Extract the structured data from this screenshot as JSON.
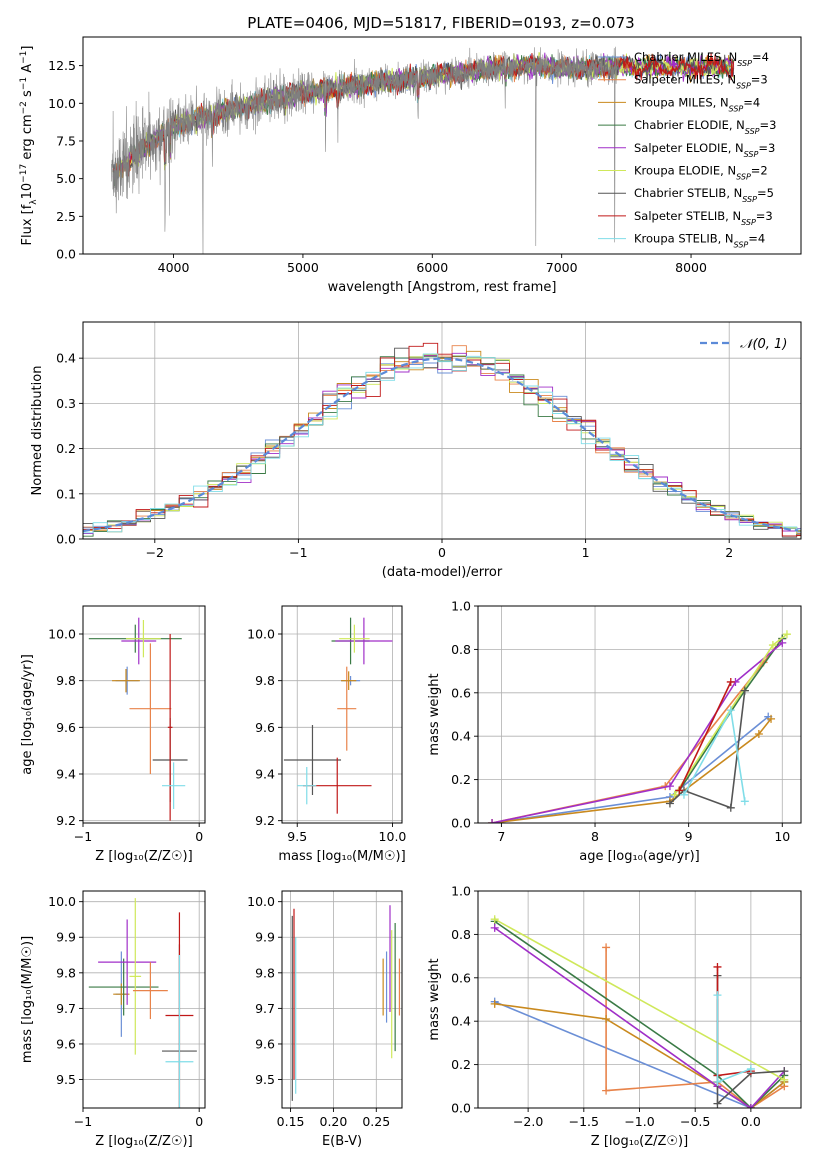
{
  "figure": {
    "title": "PLATE=0406, MJD=51817, FIBERID=0193, z=0.073"
  },
  "series": [
    {
      "name": "Chabrier MILES, N_SSP=4",
      "label_main": "Chabrier MILES, N",
      "label_sub": "SSP",
      "label_tail": "=4",
      "color": "#6b8fd6"
    },
    {
      "name": "Salpeter MILES, N_SSP=3",
      "label_main": "Salpeter MILES, N",
      "label_sub": "SSP",
      "label_tail": "=3",
      "color": "#e8834a"
    },
    {
      "name": "Kroupa MILES, N_SSP=4",
      "label_main": "Kroupa MILES, N",
      "label_sub": "SSP",
      "label_tail": "=4",
      "color": "#c9891e"
    },
    {
      "name": "Chabrier ELODIE, N_SSP=3",
      "label_main": "Chabrier ELODIE, N",
      "label_sub": "SSP",
      "label_tail": "=3",
      "color": "#3a7a45"
    },
    {
      "name": "Salpeter ELODIE, N_SSP=3",
      "label_main": "Salpeter ELODIE, N",
      "label_sub": "SSP",
      "label_tail": "=3",
      "color": "#a02fc8"
    },
    {
      "name": "Kroupa ELODIE, N_SSP=2",
      "label_main": "Kroupa ELODIE, N",
      "label_sub": "SSP",
      "label_tail": "=2",
      "color": "#cfe85a"
    },
    {
      "name": "Chabrier STELIB, N_SSP=5",
      "label_main": "Chabrier STELIB, N",
      "label_sub": "SSP",
      "label_tail": "=5",
      "color": "#555555"
    },
    {
      "name": "Salpeter STELIB, N_SSP=3",
      "label_main": "Salpeter STELIB, N",
      "label_sub": "SSP",
      "label_tail": "=3",
      "color": "#c01818"
    },
    {
      "name": "Kroupa STELIB, N_SSP=4",
      "label_main": "Kroupa STELIB, N",
      "label_sub": "SSP",
      "label_tail": "=4",
      "color": "#80dde8"
    }
  ],
  "chart_data": [
    {
      "id": "spectrum",
      "type": "line",
      "xlabel": "wavelength [Angstrom, rest frame]",
      "ylabel_main": "Flux [f",
      "ylabel_sub": "λ",
      "ylabel_mid": "10",
      "ylabel_sup1": "−17",
      "ylabel_tail": " erg cm",
      "ylabel_sup2": "−2",
      "ylabel_tail2": " s",
      "ylabel_sup3": "−1",
      "ylabel_tail3": " A",
      "ylabel_sup4": "−1",
      "ylabel_end": "]",
      "xlim": [
        3300,
        8850
      ],
      "ylim": [
        0,
        14.4
      ],
      "xticks": [
        4000,
        5000,
        6000,
        7000,
        8000
      ],
      "yticks": [
        0.0,
        2.5,
        5.0,
        7.5,
        10.0,
        12.5
      ],
      "xtick_labels": [
        "4000",
        "5000",
        "6000",
        "7000",
        "8000"
      ],
      "ytick_labels": [
        "0.0",
        "2.5",
        "5.0",
        "7.5",
        "10.0",
        "12.5"
      ],
      "data_range": [
        3520,
        7440
      ],
      "continuum_x": [
        3520,
        3700,
        3900,
        4000,
        4200,
        4500,
        4800,
        5000,
        5500,
        6000,
        6500,
        6800,
        7000,
        7440
      ],
      "continuum_y": [
        5.2,
        6.5,
        7.9,
        8.5,
        9.0,
        9.7,
        10.4,
        10.7,
        11.3,
        11.8,
        12.3,
        12.5,
        12.3,
        12.4
      ],
      "absorption_lines": [
        {
          "x": 3934,
          "depth": 7.5
        },
        {
          "x": 3968,
          "depth": 5.5
        },
        {
          "x": 4227,
          "depth": 9.5
        },
        {
          "x": 4300,
          "depth": 3.5
        },
        {
          "x": 4861,
          "depth": 2.5
        },
        {
          "x": 5175,
          "depth": 4.5
        },
        {
          "x": 5270,
          "depth": 3.0
        },
        {
          "x": 5890,
          "depth": 4.0
        },
        {
          "x": 6563,
          "depth": 2.5
        },
        {
          "x": 6800,
          "depth": 12.5
        },
        {
          "x": 7410,
          "depth": 12.4
        }
      ],
      "model_extent": [
        3530,
        8330
      ]
    },
    {
      "id": "residuals",
      "type": "step",
      "xlabel": "(data-model)/error",
      "ylabel": "Normed distribution",
      "xlim": [
        -2.5,
        2.5
      ],
      "ylim": [
        0,
        0.48
      ],
      "xticks": [
        -2,
        -1,
        0,
        1,
        2
      ],
      "yticks": [
        0.0,
        0.1,
        0.2,
        0.3,
        0.4
      ],
      "xtick_labels": [
        "−2",
        "−1",
        "0",
        "1",
        "2"
      ],
      "ytick_labels": [
        "0.0",
        "0.1",
        "0.2",
        "0.3",
        "0.4"
      ],
      "bin_width": 0.1,
      "reference": {
        "label": "𝒩(0, 1)",
        "mean": 0,
        "sigma": 1,
        "color": "#5b8ad8"
      }
    },
    {
      "id": "z_age",
      "type": "errorbar",
      "xlabel": "Z [log₁₀(Z/Z☉)]",
      "ylabel": "age  [log₁₀(age/yr)]",
      "xlim": [
        -1.0,
        0.05
      ],
      "ylim": [
        9.19,
        10.12
      ],
      "xticks": [
        -1,
        0
      ],
      "yticks": [
        9.2,
        9.4,
        9.6,
        9.8,
        10.0
      ],
      "xtick_labels": [
        "−1",
        "0"
      ],
      "ytick_labels": [
        "9.2",
        "9.4",
        "9.6",
        "9.8",
        "10.0"
      ],
      "points": [
        {
          "s": 0,
          "x": -0.62,
          "y": 9.8,
          "xerr": 0.1,
          "yerr": 0.06
        },
        {
          "s": 2,
          "x": -0.63,
          "y": 9.8,
          "xerr": 0.12,
          "yerr": 0.05
        },
        {
          "s": 3,
          "x": -0.55,
          "y": 9.98,
          "xerr": 0.4,
          "yerr": 0.06
        },
        {
          "s": 4,
          "x": -0.52,
          "y": 9.97,
          "xerr": 0.15,
          "yerr": 0.1
        },
        {
          "s": 5,
          "x": -0.48,
          "y": 9.98,
          "xerr": 0.15,
          "yerr": 0.08
        },
        {
          "s": 1,
          "x": -0.42,
          "y": 9.68,
          "xerr": 0.18,
          "yerr": 0.28
        },
        {
          "s": 6,
          "x": -0.25,
          "y": 9.46,
          "xerr": 0.15,
          "yerr": 0.18
        },
        {
          "s": 7,
          "x": -0.25,
          "y": 9.6,
          "xerr": 0.02,
          "yerr": 0.4
        },
        {
          "s": 8,
          "x": -0.22,
          "y": 9.35,
          "xerr": 0.1,
          "yerr": 0.1
        }
      ]
    },
    {
      "id": "mass_age",
      "type": "errorbar",
      "xlabel": "mass [log₁₀(M/M☉)]",
      "ylabel": "",
      "xlim": [
        9.42,
        10.05
      ],
      "ylim": [
        9.19,
        10.12
      ],
      "xticks": [
        9.5,
        10.0
      ],
      "yticks": [
        9.2,
        9.4,
        9.6,
        9.8,
        10.0
      ],
      "xtick_labels": [
        "9.5",
        "10.0"
      ],
      "ytick_labels": [
        "9.2",
        "9.4",
        "9.6",
        "9.8",
        "10.0"
      ],
      "points": [
        {
          "s": 0,
          "x": 9.78,
          "y": 9.8,
          "xerr": 0.05,
          "yerr": 0.02
        },
        {
          "s": 3,
          "x": 9.78,
          "y": 9.97,
          "xerr": 0.1,
          "yerr": 0.1
        },
        {
          "s": 4,
          "x": 9.85,
          "y": 9.97,
          "xerr": 0.15,
          "yerr": 0.1
        },
        {
          "s": 5,
          "x": 9.8,
          "y": 9.98,
          "xerr": 0.08,
          "yerr": 0.06
        },
        {
          "s": 1,
          "x": 9.76,
          "y": 9.68,
          "xerr": 0.05,
          "yerr": 0.18
        },
        {
          "s": 6,
          "x": 9.58,
          "y": 9.46,
          "xerr": 0.15,
          "yerr": 0.15
        },
        {
          "s": 7,
          "x": 9.71,
          "y": 9.35,
          "xerr": 0.18,
          "yerr": 0.12
        },
        {
          "s": 8,
          "x": 9.55,
          "y": 9.35,
          "xerr": 0.05,
          "yerr": 0.08
        },
        {
          "s": 2,
          "x": 9.77,
          "y": 9.8,
          "xerr": 0.04,
          "yerr": 0.04
        }
      ]
    },
    {
      "id": "age_weight",
      "type": "line",
      "xlabel": "age  [log₁₀(age/yr)]",
      "ylabel": "mass weight",
      "xlim": [
        6.75,
        10.2
      ],
      "ylim": [
        0,
        1.0
      ],
      "xticks": [
        7,
        8,
        9,
        10
      ],
      "yticks": [
        0.0,
        0.2,
        0.4,
        0.6,
        0.8,
        1.0
      ],
      "xtick_labels": [
        "7",
        "8",
        "9",
        "10"
      ],
      "ytick_labels": [
        "0.0",
        "0.2",
        "0.4",
        "0.6",
        "0.8",
        "1.0"
      ],
      "lines": [
        {
          "s": 0,
          "x": [
            6.9,
            8.8,
            9.85
          ],
          "y": [
            0.0,
            0.12,
            0.49
          ]
        },
        {
          "s": 1,
          "x": [
            6.9,
            8.75,
            9.8,
            10.0
          ],
          "y": [
            0.0,
            0.17,
            0.74,
            0.85
          ]
        },
        {
          "s": 2,
          "x": [
            6.9,
            8.8,
            9.75,
            9.88
          ],
          "y": [
            0.0,
            0.1,
            0.41,
            0.48
          ]
        },
        {
          "s": 3,
          "x": [
            8.9,
            9.6,
            10.0
          ],
          "y": [
            0.15,
            0.61,
            0.85
          ]
        },
        {
          "s": 4,
          "x": [
            6.9,
            8.8,
            9.5,
            10.0
          ],
          "y": [
            0.0,
            0.17,
            0.65,
            0.83
          ]
        },
        {
          "s": 5,
          "x": [
            8.85,
            9.9,
            10.05
          ],
          "y": [
            0.13,
            0.82,
            0.87
          ]
        },
        {
          "s": 6,
          "x": [
            8.8,
            8.95,
            9.45,
            9.6
          ],
          "y": [
            0.09,
            0.15,
            0.07,
            0.61
          ]
        },
        {
          "s": 7,
          "x": [
            8.9,
            9.45
          ],
          "y": [
            0.15,
            0.65
          ]
        },
        {
          "s": 8,
          "x": [
            8.95,
            9.45,
            9.6
          ],
          "y": [
            0.13,
            0.52,
            0.1
          ]
        }
      ]
    },
    {
      "id": "z_mass",
      "type": "errorbar",
      "xlabel": "Z [log₁₀(Z/Z☉)]",
      "ylabel": "mass [log₁₀(M/M☉)]",
      "xlim": [
        -1.0,
        0.05
      ],
      "ylim": [
        9.42,
        10.03
      ],
      "xticks": [
        -1,
        0
      ],
      "yticks": [
        9.5,
        9.6,
        9.7,
        9.8,
        9.9,
        10.0
      ],
      "xtick_labels": [
        "−1",
        "0"
      ],
      "ytick_labels": [
        "9.5",
        "9.6",
        "9.7",
        "9.8",
        "9.9",
        "10.0"
      ],
      "points": [
        {
          "s": 0,
          "x": -0.67,
          "y": 9.74,
          "xerr": 0.05,
          "yerr": 0.12
        },
        {
          "s": 2,
          "x": -0.67,
          "y": 9.74,
          "xerr": 0.07,
          "yerr": 0.03
        },
        {
          "s": 3,
          "x": -0.65,
          "y": 9.76,
          "xerr": 0.3,
          "yerr": 0.08
        },
        {
          "s": 4,
          "x": -0.62,
          "y": 9.83,
          "xerr": 0.25,
          "yerr": 0.12
        },
        {
          "s": 5,
          "x": -0.55,
          "y": 9.79,
          "xerr": 0.05,
          "yerr": 0.22
        },
        {
          "s": 1,
          "x": -0.42,
          "y": 9.75,
          "xerr": 0.15,
          "yerr": 0.08
        },
        {
          "s": 6,
          "x": -0.17,
          "y": 9.58,
          "xerr": 0.15,
          "yerr": 0.3
        },
        {
          "s": 7,
          "x": -0.17,
          "y": 9.68,
          "xerr": 0.12,
          "yerr": 0.29
        },
        {
          "s": 8,
          "x": -0.17,
          "y": 9.55,
          "xerr": 0.12,
          "yerr": 0.3
        }
      ]
    },
    {
      "id": "ebv_mass",
      "type": "errorbar",
      "xlabel": "E(B-V)",
      "ylabel": "",
      "xlim": [
        0.14,
        0.28
      ],
      "ylim": [
        9.42,
        10.03
      ],
      "xticks": [
        0.15,
        0.2,
        0.25
      ],
      "yticks": [
        9.5,
        9.6,
        9.7,
        9.8,
        9.9,
        10.0
      ],
      "xtick_labels": [
        "0.15",
        "0.20",
        "0.25"
      ],
      "ytick_labels": [
        "9.5",
        "9.6",
        "9.7",
        "9.8",
        "9.9",
        "10.0"
      ],
      "points": [
        {
          "s": 0,
          "x": 0.262,
          "y": 9.76,
          "xerr": 0.0,
          "yerr": 0.1
        },
        {
          "s": 2,
          "x": 0.258,
          "y": 9.76,
          "xerr": 0.0,
          "yerr": 0.08
        },
        {
          "s": 3,
          "x": 0.272,
          "y": 9.76,
          "xerr": 0.0,
          "yerr": 0.18
        },
        {
          "s": 4,
          "x": 0.266,
          "y": 9.84,
          "xerr": 0.0,
          "yerr": 0.15
        },
        {
          "s": 5,
          "x": 0.268,
          "y": 9.74,
          "xerr": 0.0,
          "yerr": 0.18
        },
        {
          "s": 1,
          "x": 0.277,
          "y": 9.76,
          "xerr": 0.0,
          "yerr": 0.08
        },
        {
          "s": 6,
          "x": 0.152,
          "y": 9.7,
          "xerr": 0.0,
          "yerr": 0.26
        },
        {
          "s": 7,
          "x": 0.154,
          "y": 9.74,
          "xerr": 0.0,
          "yerr": 0.24
        },
        {
          "s": 8,
          "x": 0.156,
          "y": 9.68,
          "xerr": 0.0,
          "yerr": 0.22
        }
      ]
    },
    {
      "id": "z_weight",
      "type": "line",
      "xlabel": "Z [log₁₀(Z/Z☉)]",
      "ylabel": "mass weight",
      "xlim": [
        -2.45,
        0.45
      ],
      "ylim": [
        0,
        1.0
      ],
      "xticks": [
        -2.0,
        -1.5,
        -1.0,
        -0.5,
        0.0
      ],
      "yticks": [
        0.0,
        0.2,
        0.4,
        0.6,
        0.8,
        1.0
      ],
      "xtick_labels": [
        "−2.0",
        "−1.5",
        "−1.0",
        "−0.5",
        "0.0"
      ],
      "ytick_labels": [
        "0.0",
        "0.2",
        "0.4",
        "0.6",
        "0.8",
        "1.0"
      ],
      "lines": [
        {
          "s": 0,
          "x": [
            -2.3,
            0.0,
            0.3
          ],
          "y": [
            0.49,
            0.0,
            0.12
          ]
        },
        {
          "s": 1,
          "x": [
            -1.3,
            -1.3,
            -0.3,
            0.0,
            0.3
          ],
          "y": [
            0.74,
            0.08,
            0.12,
            0.0,
            0.1
          ]
        },
        {
          "s": 2,
          "x": [
            -2.3,
            -1.3,
            -0.3,
            0.0,
            0.3
          ],
          "y": [
            0.48,
            0.41,
            0.1,
            0.0,
            0.12
          ]
        },
        {
          "s": 3,
          "x": [
            -2.3,
            -0.3,
            0.0,
            0.3
          ],
          "y": [
            0.86,
            0.15,
            0.0,
            0.15
          ]
        },
        {
          "s": 4,
          "x": [
            -2.3,
            -0.3,
            0.0,
            0.3
          ],
          "y": [
            0.83,
            0.1,
            0.0,
            0.17
          ]
        },
        {
          "s": 5,
          "x": [
            -2.3,
            0.3
          ],
          "y": [
            0.87,
            0.13
          ]
        },
        {
          "s": 6,
          "x": [
            -0.3,
            -0.3,
            0.0,
            0.3
          ],
          "y": [
            0.61,
            0.02,
            0.16,
            0.17
          ]
        },
        {
          "s": 7,
          "x": [
            -0.3,
            -0.3,
            0.0
          ],
          "y": [
            0.65,
            0.15,
            0.17
          ]
        },
        {
          "s": 8,
          "x": [
            -0.3,
            -0.3,
            0.0
          ],
          "y": [
            0.52,
            0.12,
            0.18
          ]
        }
      ]
    }
  ]
}
